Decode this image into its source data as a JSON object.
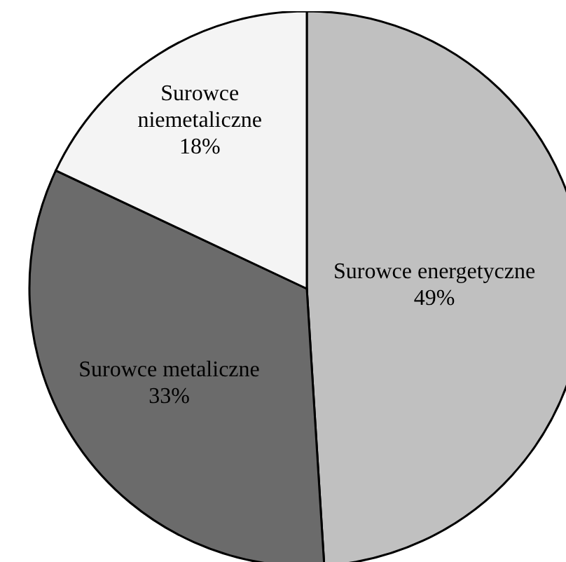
{
  "chart_data": {
    "type": "pie",
    "categories": [
      "Surowce energetyczne",
      "Surowce metaliczne",
      "Surowce niemetaliczne"
    ],
    "values": [
      49,
      33,
      18
    ],
    "colors": [
      "#c0c0c0",
      "#6b6b6b",
      "#f4f4f4"
    ],
    "value_labels": [
      "49%",
      "33%",
      "18%"
    ]
  }
}
